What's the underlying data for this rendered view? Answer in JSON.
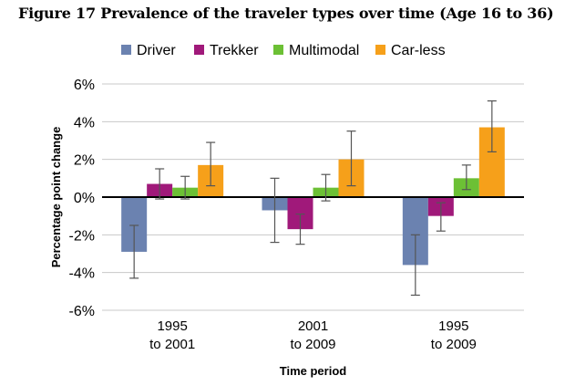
{
  "figure": {
    "title": "Figure 17 Prevalence of the traveler types over time (Age 16 to 36)"
  },
  "chart_data": {
    "type": "bar",
    "title": "Figure 17 Prevalence of the traveler types over time (Age 16 to 36)",
    "xlabel": "Time period",
    "ylabel": "Percentage point change",
    "ylim": [
      -6,
      6
    ],
    "yticks": [
      6,
      4,
      2,
      0,
      -2,
      -4,
      -6
    ],
    "ytick_labels": [
      "6%",
      "4%",
      "2%",
      "0%",
      "-2%",
      "-4%",
      "-6%"
    ],
    "grid": true,
    "legend_position": "top",
    "categories": [
      [
        "1995",
        "to 2001"
      ],
      [
        "2001",
        "to 2009"
      ],
      [
        "1995",
        "to 2009"
      ]
    ],
    "series": [
      {
        "name": "Driver",
        "color": "#6b82b0",
        "values": [
          -2.9,
          -0.7,
          -3.6
        ],
        "error_low": [
          -4.3,
          -2.4,
          -5.2
        ],
        "error_high": [
          -1.5,
          1.0,
          -2.0
        ]
      },
      {
        "name": "Trekker",
        "color": "#a0197a",
        "values": [
          0.7,
          -1.7,
          -1.0
        ],
        "error_low": [
          -0.1,
          -2.5,
          -1.8
        ],
        "error_high": [
          1.5,
          -0.9,
          -0.3
        ]
      },
      {
        "name": "Multimodal",
        "color": "#6cc035",
        "values": [
          0.5,
          0.5,
          1.0
        ],
        "error_low": [
          -0.1,
          -0.2,
          0.4
        ],
        "error_high": [
          1.1,
          1.2,
          1.7
        ]
      },
      {
        "name": "Car-less",
        "color": "#f6a01a",
        "values": [
          1.7,
          2.0,
          3.7
        ],
        "error_low": [
          0.6,
          0.6,
          2.4
        ],
        "error_high": [
          2.9,
          3.5,
          5.1
        ]
      }
    ]
  }
}
